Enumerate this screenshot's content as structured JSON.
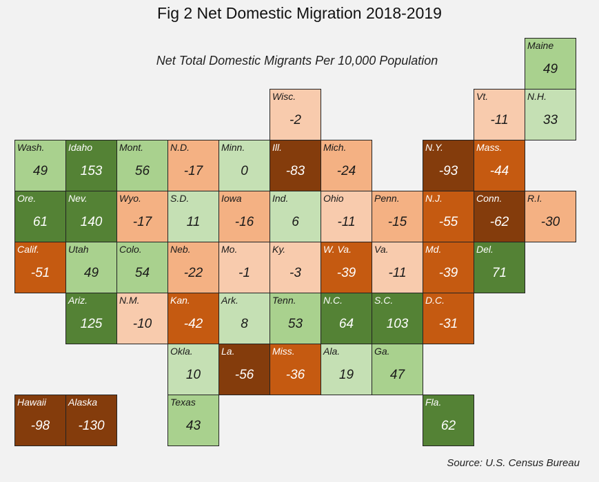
{
  "title": "Fig 2 Net Domestic Migration 2018-2019",
  "subtitle": "Net Total Domestic Migrants Per 10,000 Population",
  "source": "Source: U.S. Census Bureau",
  "colors": {
    "dark_green": "#548235",
    "mid_green": "#a9d18e",
    "light_green": "#c5e0b4",
    "light_peach": "#f8cbad",
    "peach": "#f4b183",
    "orange": "#c55a11",
    "brown": "#843c0c"
  },
  "chart_data": {
    "type": "heatmap",
    "title": "Fig 2 Net Domestic Migration 2018-2019",
    "subtitle": "Net Total Domestic Migrants Per 10,000 Population",
    "tiles": [
      {
        "label": "Maine",
        "value": 49,
        "row": 0,
        "col": 10
      },
      {
        "label": "Wisc.",
        "value": -2,
        "row": 1,
        "col": 5
      },
      {
        "label": "Vt.",
        "value": -11,
        "row": 1,
        "col": 9
      },
      {
        "label": "N.H.",
        "value": 33,
        "row": 1,
        "col": 10
      },
      {
        "label": "Wash.",
        "value": 49,
        "row": 2,
        "col": 0
      },
      {
        "label": "Idaho",
        "value": 153,
        "row": 2,
        "col": 1
      },
      {
        "label": "Mont.",
        "value": 56,
        "row": 2,
        "col": 2
      },
      {
        "label": "N.D.",
        "value": -17,
        "row": 2,
        "col": 3
      },
      {
        "label": "Minn.",
        "value": 0,
        "row": 2,
        "col": 4
      },
      {
        "label": "Ill.",
        "value": -83,
        "row": 2,
        "col": 5
      },
      {
        "label": "Mich.",
        "value": -24,
        "row": 2,
        "col": 6
      },
      {
        "label": "N.Y.",
        "value": -93,
        "row": 2,
        "col": 8
      },
      {
        "label": "Mass.",
        "value": -44,
        "row": 2,
        "col": 9
      },
      {
        "label": "Ore.",
        "value": 61,
        "row": 3,
        "col": 0
      },
      {
        "label": "Nev.",
        "value": 140,
        "row": 3,
        "col": 1
      },
      {
        "label": "Wyo.",
        "value": -17,
        "row": 3,
        "col": 2
      },
      {
        "label": "S.D.",
        "value": 11,
        "row": 3,
        "col": 3
      },
      {
        "label": "Iowa",
        "value": -16,
        "row": 3,
        "col": 4
      },
      {
        "label": "Ind.",
        "value": 6,
        "row": 3,
        "col": 5
      },
      {
        "label": "Ohio",
        "value": -11,
        "row": 3,
        "col": 6
      },
      {
        "label": "Penn.",
        "value": -15,
        "row": 3,
        "col": 7
      },
      {
        "label": "N.J.",
        "value": -55,
        "row": 3,
        "col": 8
      },
      {
        "label": "Conn.",
        "value": -62,
        "row": 3,
        "col": 9
      },
      {
        "label": "R.I.",
        "value": -30,
        "row": 3,
        "col": 10
      },
      {
        "label": "Calif.",
        "value": -51,
        "row": 4,
        "col": 0
      },
      {
        "label": "Utah",
        "value": 49,
        "row": 4,
        "col": 1
      },
      {
        "label": "Colo.",
        "value": 54,
        "row": 4,
        "col": 2
      },
      {
        "label": "Neb.",
        "value": -22,
        "row": 4,
        "col": 3
      },
      {
        "label": "Mo.",
        "value": -1,
        "row": 4,
        "col": 4
      },
      {
        "label": "Ky.",
        "value": -3,
        "row": 4,
        "col": 5
      },
      {
        "label": "W. Va.",
        "value": -39,
        "row": 4,
        "col": 6
      },
      {
        "label": "Va.",
        "value": -11,
        "row": 4,
        "col": 7
      },
      {
        "label": "Md.",
        "value": -39,
        "row": 4,
        "col": 8
      },
      {
        "label": "Del.",
        "value": 71,
        "row": 4,
        "col": 9
      },
      {
        "label": "Ariz.",
        "value": 125,
        "row": 5,
        "col": 1
      },
      {
        "label": "N.M.",
        "value": -10,
        "row": 5,
        "col": 2
      },
      {
        "label": "Kan.",
        "value": -42,
        "row": 5,
        "col": 3
      },
      {
        "label": "Ark.",
        "value": 8,
        "row": 5,
        "col": 4
      },
      {
        "label": "Tenn.",
        "value": 53,
        "row": 5,
        "col": 5
      },
      {
        "label": "N.C.",
        "value": 64,
        "row": 5,
        "col": 6
      },
      {
        "label": "S.C.",
        "value": 103,
        "row": 5,
        "col": 7
      },
      {
        "label": "D.C.",
        "value": -31,
        "row": 5,
        "col": 8
      },
      {
        "label": "Okla.",
        "value": 10,
        "row": 6,
        "col": 3
      },
      {
        "label": "La.",
        "value": -56,
        "row": 6,
        "col": 4
      },
      {
        "label": "Miss.",
        "value": -36,
        "row": 6,
        "col": 5
      },
      {
        "label": "Ala.",
        "value": 19,
        "row": 6,
        "col": 6
      },
      {
        "label": "Ga.",
        "value": 47,
        "row": 6,
        "col": 7
      },
      {
        "label": "Hawaii",
        "value": -98,
        "row": 7,
        "col": 0
      },
      {
        "label": "Alaska",
        "value": -130,
        "row": 7,
        "col": 1
      },
      {
        "label": "Texas",
        "value": 43,
        "row": 7,
        "col": 3
      },
      {
        "label": "Fla.",
        "value": 62,
        "row": 7,
        "col": 8
      }
    ]
  }
}
